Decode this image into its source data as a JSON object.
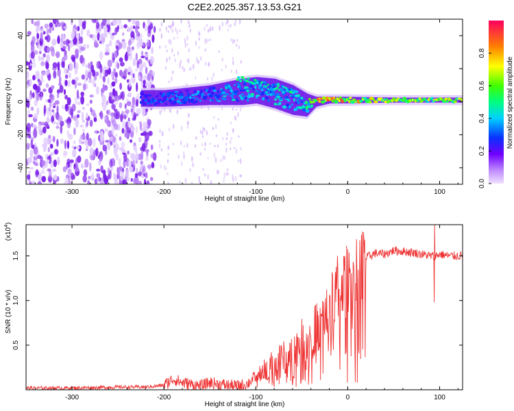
{
  "title": "C2E2.2025.357.13.53.G21",
  "chart_data": [
    {
      "type": "heatmap",
      "name": "spectrogram",
      "xlabel": "Height of straight line (km)",
      "ylabel": "Frequency (Hz)",
      "xlim": [
        -350,
        125
      ],
      "ylim": [
        -50,
        50
      ],
      "x_ticks": [
        -300,
        -200,
        -100,
        0,
        100
      ],
      "y_ticks": [
        -40,
        -20,
        0,
        20,
        40
      ],
      "colorbar": {
        "label": "Normalized spectral amplitude",
        "range": [
          0,
          1
        ],
        "ticks": [
          "0.0",
          "0.2",
          "0.4",
          "0.6",
          "0.8"
        ],
        "tick_values": [
          0.0,
          0.2,
          0.4,
          0.6,
          0.8
        ]
      },
      "signal_track": {
        "description": "Doppler trace",
        "x": [
          -225,
          -200,
          -150,
          -115,
          -100,
          -80,
          -60,
          -45,
          -35,
          -20,
          0,
          50,
          125
        ],
        "center_hz": [
          2,
          2,
          4,
          6,
          7,
          5,
          1,
          -2,
          0,
          1,
          1,
          1,
          1
        ],
        "spread_hz": [
          5,
          5,
          6,
          8,
          8,
          9,
          9,
          7,
          3,
          2,
          2,
          1.5,
          1.5
        ],
        "peak_amplitude": [
          0.3,
          0.35,
          0.4,
          0.45,
          0.45,
          0.45,
          0.4,
          0.5,
          0.8,
          0.95,
          0.9,
          0.7,
          0.7
        ]
      },
      "noise_region_x": [
        -350,
        -225
      ]
    },
    {
      "type": "line",
      "name": "snr",
      "xlabel": "Height of straight line (km)",
      "ylabel": "SNR (10 * v/v)",
      "y_multiplier": "(x10",
      "y_multiplier_exp": "4",
      "xlim": [
        -350,
        125
      ],
      "ylim": [
        0,
        1.85
      ],
      "x_ticks": [
        -300,
        -200,
        -100,
        0,
        100
      ],
      "y_ticks": [
        0.5,
        1.0,
        1.5
      ],
      "series": [
        {
          "name": "SNR",
          "color": "#ee3333",
          "x": [
            -350,
            -300,
            -250,
            -220,
            -200,
            -190,
            -180,
            -170,
            -160,
            -150,
            -140,
            -130,
            -120,
            -110,
            -100,
            -90,
            -80,
            -70,
            -60,
            -50,
            -40,
            -30,
            -20,
            -15,
            -10,
            -5,
            0,
            10,
            20,
            30,
            40,
            50,
            60,
            70,
            80,
            90,
            94,
            96,
            100,
            110,
            125
          ],
          "y": [
            0.02,
            0.02,
            0.03,
            0.03,
            0.05,
            0.12,
            0.08,
            0.06,
            0.04,
            0.08,
            0.06,
            0.05,
            0.04,
            0.06,
            0.15,
            0.22,
            0.3,
            0.36,
            0.42,
            0.55,
            0.6,
            0.75,
            0.9,
            1.05,
            1.2,
            1.2,
            1.25,
            1.35,
            1.48,
            1.53,
            1.52,
            1.56,
            1.55,
            1.54,
            1.52,
            1.5,
            1.5,
            1.5,
            1.52,
            1.5,
            1.5
          ]
        }
      ]
    }
  ],
  "colors": {
    "snr_line": "#ee3333",
    "noise": "#7a1ee8"
  }
}
